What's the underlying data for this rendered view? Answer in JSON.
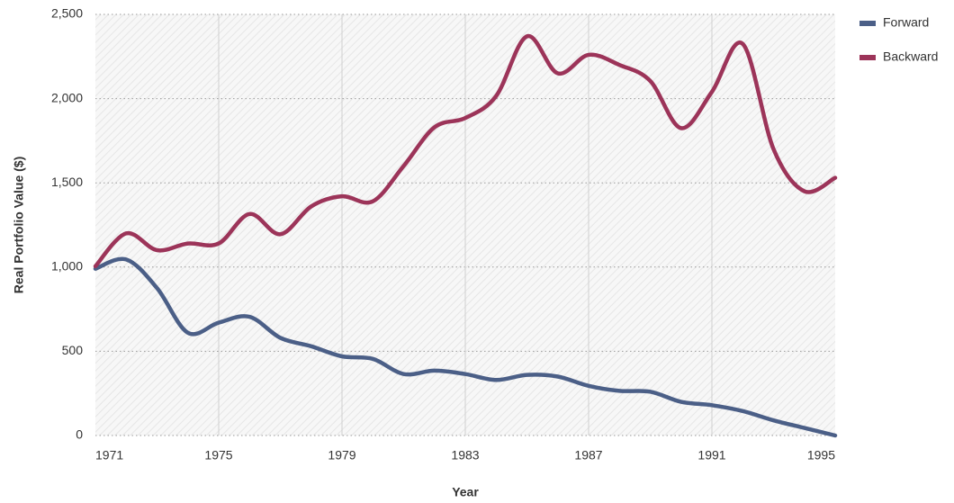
{
  "chart_data": {
    "type": "line",
    "x_label": "Year",
    "y_label": "Real Portfolio Value ($)",
    "x": [
      1971,
      1972,
      1973,
      1974,
      1975,
      1976,
      1977,
      1978,
      1979,
      1980,
      1981,
      1982,
      1983,
      1984,
      1985,
      1986,
      1987,
      1988,
      1989,
      1990,
      1991,
      1992,
      1993,
      1994,
      1995
    ],
    "series": [
      {
        "name": "Forward",
        "color": "#4b5f87",
        "values": [
          990,
          1045,
          875,
          610,
          670,
          705,
          580,
          530,
          470,
          455,
          365,
          385,
          365,
          330,
          360,
          350,
          295,
          265,
          260,
          200,
          180,
          145,
          90,
          45,
          0
        ]
      },
      {
        "name": "Backward",
        "color": "#9c3459",
        "values": [
          1005,
          1200,
          1100,
          1140,
          1140,
          1315,
          1195,
          1360,
          1420,
          1390,
          1600,
          1830,
          1885,
          2015,
          2370,
          2150,
          2260,
          2200,
          2105,
          1825,
          2040,
          2325,
          1700,
          1450,
          1530
        ]
      }
    ],
    "xlim": [
      1971,
      1995
    ],
    "xticks": [
      1971,
      1975,
      1979,
      1983,
      1987,
      1991,
      1995
    ],
    "ylim": [
      0,
      2500
    ],
    "yticks": [
      0,
      500,
      {
        "value": 1000,
        "label": "1,000"
      },
      {
        "value": 1500,
        "label": "1,500"
      },
      {
        "value": 2000,
        "label": "2,000"
      },
      {
        "value": 2500,
        "label": "2,500"
      }
    ],
    "grid": true,
    "legend": "right"
  }
}
